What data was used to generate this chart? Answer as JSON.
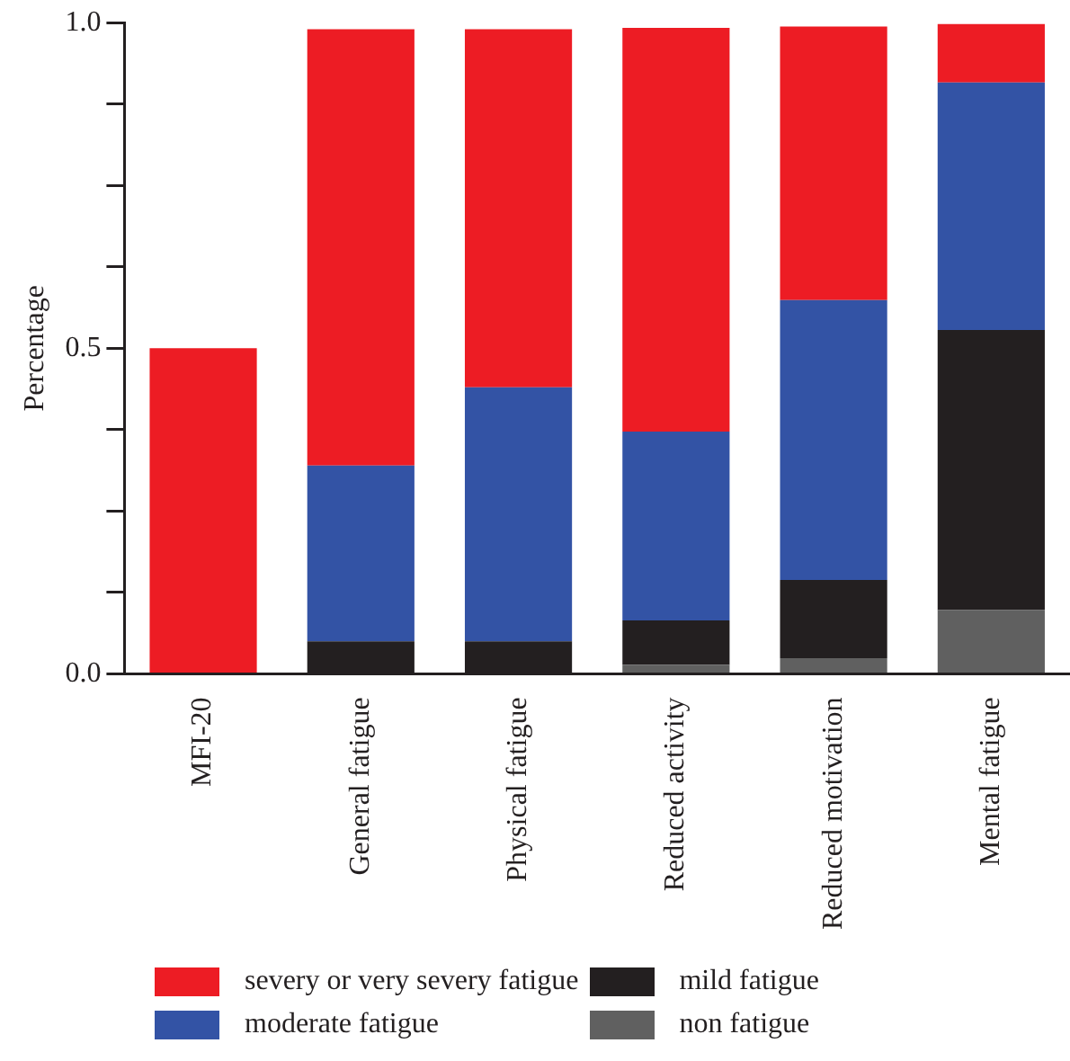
{
  "chart_data": {
    "type": "bar",
    "stacked": true,
    "ylabel": "Percentage",
    "categories": [
      "MFI-20",
      "General fatigue",
      "Physical fatigue",
      "Reduced activity",
      "Reduced motivation",
      "Mental fatigue"
    ],
    "series": [
      {
        "name": "non fatigue",
        "color": "#606060",
        "values": [
          0,
          0,
          0,
          0.014,
          0.024,
          0.098
        ]
      },
      {
        "name": "mild fatigue",
        "color": "#231f20",
        "values": [
          0,
          0.05,
          0.05,
          0.068,
          0.12,
          0.43
        ]
      },
      {
        "name": "moderate fatigue",
        "color": "#3353a5",
        "values": [
          0,
          0.27,
          0.39,
          0.29,
          0.43,
          0.38
        ]
      },
      {
        "name": "severy or very severy fatigue",
        "color": "#ed1c24",
        "values": [
          0.5,
          0.67,
          0.55,
          0.62,
          0.42,
          0.09
        ]
      }
    ],
    "ylim": [
      0,
      1
    ],
    "yticks": [
      {
        "value": 0,
        "label": "0.0"
      },
      {
        "value": 0.125,
        "label": null
      },
      {
        "value": 0.25,
        "label": null
      },
      {
        "value": 0.375,
        "label": null
      },
      {
        "value": 0.5,
        "label": "0.5"
      },
      {
        "value": 0.625,
        "label": null
      },
      {
        "value": 0.75,
        "label": null
      },
      {
        "value": 0.875,
        "label": null
      },
      {
        "value": 1,
        "label": "1.0"
      }
    ],
    "grid": false,
    "legend": "bottom"
  }
}
